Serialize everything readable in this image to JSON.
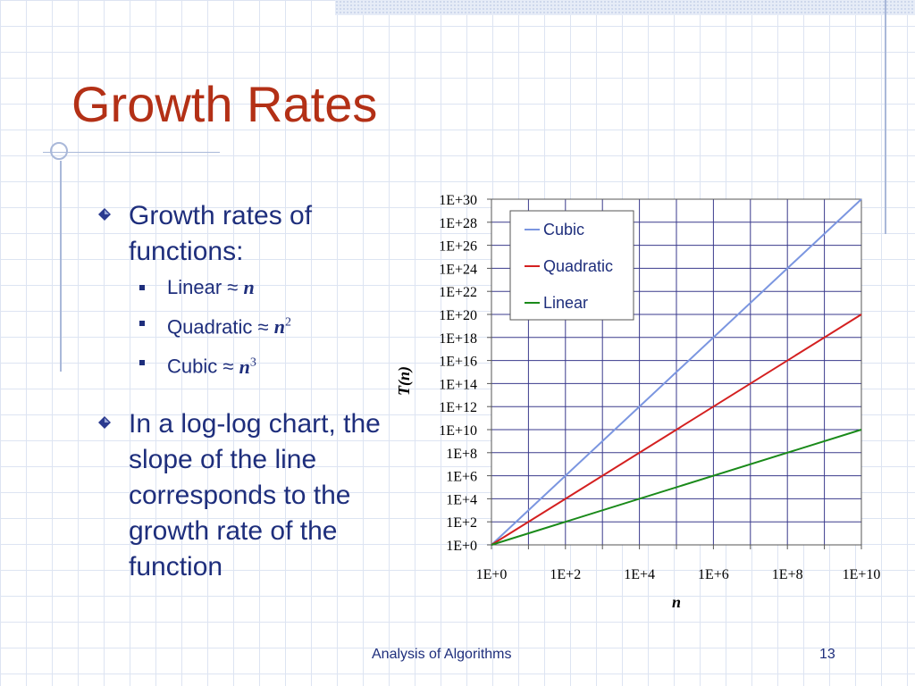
{
  "slide": {
    "title": "Growth Rates",
    "bullets": [
      {
        "text": "Growth rates of functions:",
        "sub": [
          {
            "label": "Linear",
            "approx": "≈",
            "var": "n",
            "exp": ""
          },
          {
            "label": "Quadratic",
            "approx": "≈",
            "var": "n",
            "exp": "2"
          },
          {
            "label": "Cubic",
            "approx": "≈",
            "var": "n",
            "exp": "3"
          }
        ]
      },
      {
        "text": "In a log-log chart, the slope of the line corresponds to the growth rate of the function"
      }
    ],
    "footer": {
      "text": "Analysis of Algorithms",
      "page": "13"
    }
  },
  "colors": {
    "title": "#b33016",
    "body_text": "#1e2e7c",
    "cubic": "#7b96e0",
    "quadratic": "#d42020",
    "linear": "#1a8a1a",
    "grid": "#3a3a8c"
  },
  "chart_data": {
    "type": "line",
    "scale": "log-log",
    "xlabel": "n",
    "ylabel": "T(n)",
    "xlim": [
      1,
      10000000000.0
    ],
    "ylim": [
      1,
      1e+30
    ],
    "x_ticks": [
      "1E+0",
      "1E+2",
      "1E+4",
      "1E+6",
      "1E+8",
      "1E+10"
    ],
    "y_ticks": [
      "1E+0",
      "1E+2",
      "1E+4",
      "1E+6",
      "1E+8",
      "1E+10",
      "1E+12",
      "1E+14",
      "1E+16",
      "1E+18",
      "1E+20",
      "1E+22",
      "1E+24",
      "1E+26",
      "1E+28",
      "1E+30"
    ],
    "grid": true,
    "legend_position": "top-right",
    "series": [
      {
        "name": "Cubic",
        "color": "#7b96e0",
        "x": [
          1,
          10000000000.0
        ],
        "y": [
          1,
          1e+30
        ]
      },
      {
        "name": "Quadratic",
        "color": "#d42020",
        "x": [
          1,
          10000000000.0
        ],
        "y": [
          1,
          1e+20
        ]
      },
      {
        "name": "Linear",
        "color": "#1a8a1a",
        "x": [
          1,
          10000000000.0
        ],
        "y": [
          1,
          10000000000.0
        ]
      }
    ]
  }
}
